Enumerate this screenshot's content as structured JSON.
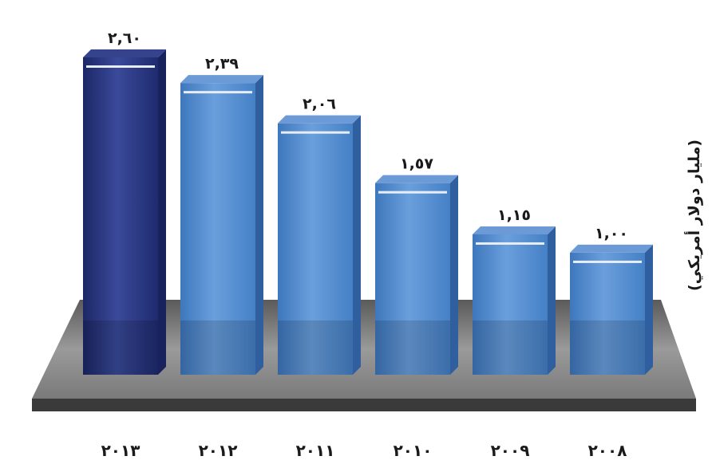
{
  "chart_data": {
    "type": "bar",
    "categories": [
      "٢٠١٣",
      "٢٠١٢",
      "٢٠١١",
      "٢٠١٠",
      "٢٠٠٩",
      "٢٠٠٨"
    ],
    "values": [
      2.6,
      2.39,
      2.06,
      1.57,
      1.15,
      1.0
    ],
    "value_labels": [
      "٢,٦٠",
      "٢,٣٩",
      "٢,٠٦",
      "١,٥٧",
      "١,١٥",
      "١,٠٠"
    ],
    "highlight_index": 0,
    "ylabel": "(مليار دولار أمريكي)",
    "ylim": [
      0,
      2.6
    ],
    "grid": false,
    "colors": {
      "highlight": "#27357a",
      "bar": "#4f86c8",
      "bar_side": "#2f5f9e",
      "bar_top": "#6b9ad6",
      "platform": "#808080",
      "platform_edge": "#3a3a3a"
    }
  }
}
